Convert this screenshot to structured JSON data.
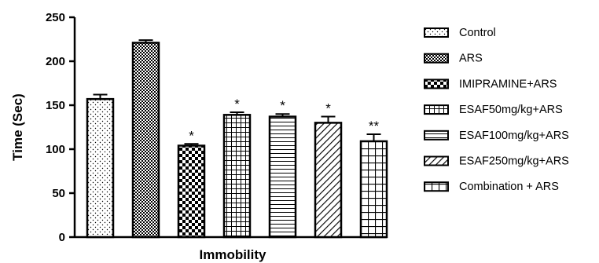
{
  "chart_data": {
    "type": "bar",
    "title": "",
    "xlabel": "Immobility",
    "ylabel": "Time (Sec)",
    "ylim": [
      0,
      250
    ],
    "yticks": [
      0,
      50,
      100,
      150,
      200,
      250
    ],
    "grid": false,
    "legend_position": "right",
    "categories": [
      "Control",
      "ARS",
      "IMIPRAMINE+ARS",
      "ESAF50mg/kg+ARS",
      "ESAF100mg/kg+ARS",
      "ESAF250mg/kg+ARS",
      "Combination + ARS"
    ],
    "values": [
      157,
      221,
      104,
      139,
      137,
      130,
      109
    ],
    "errors": [
      5,
      3,
      2,
      3,
      3,
      7,
      8
    ],
    "significance": [
      "",
      "",
      "*",
      "*",
      "*",
      "*",
      "**"
    ],
    "patterns": [
      "dots",
      "checker-fine",
      "checker-coarse",
      "grid",
      "hlines",
      "diagonal",
      "grid-coarse"
    ]
  }
}
